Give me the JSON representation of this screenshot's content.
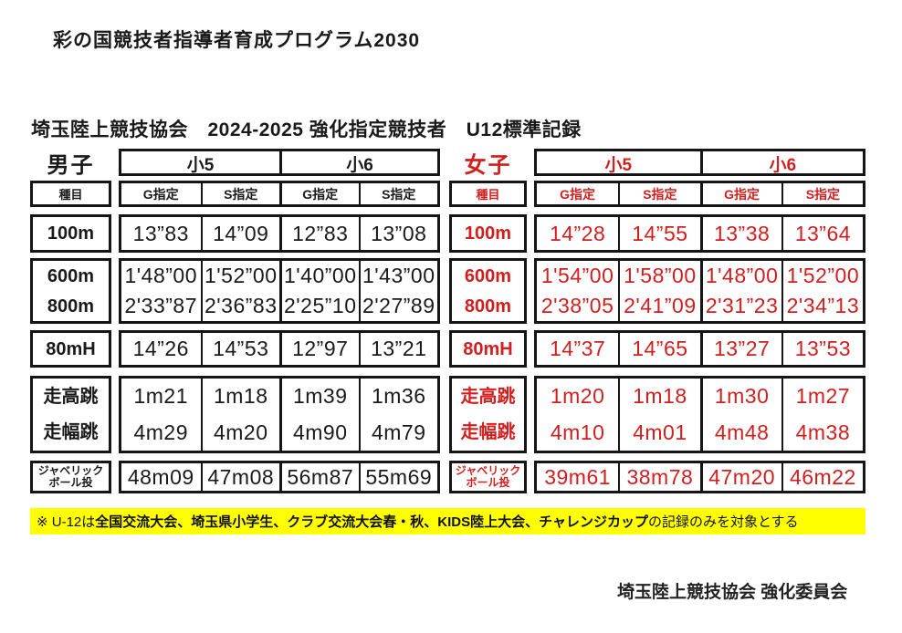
{
  "page": {
    "title": "彩の国競技者指導者育成プログラム2030",
    "subtitle": "埼玉陸上競技協会　2024-2025 強化指定競技者　U12標準記録",
    "footer": "埼玉陸上競技協会 強化委員会",
    "note": {
      "prefix": "※ U-12は",
      "bold": "全国交流大会、埼玉県小学生、クラブ交流大会春・秋、KIDS陸上大会、チャレンジカップ",
      "suffix": "の記録のみを対象とする",
      "bg_color": "#ffff00"
    },
    "colors": {
      "black_text": "#1a1a1a",
      "red_text": "#d21e1e",
      "border": "#151515",
      "note_bg": "#ffff00"
    }
  },
  "tables": [
    {
      "gender": "男子",
      "text_color": "#1a1a1a",
      "event_header": "種目",
      "grades": [
        "小5",
        "小6"
      ],
      "specs": [
        "G指定",
        "S指定",
        "G指定",
        "S指定"
      ],
      "groups": [
        {
          "rows": [
            {
              "event": "100m",
              "values": [
                "13”83",
                "14”09",
                "12”83",
                "13”08"
              ]
            }
          ]
        },
        {
          "rows": [
            {
              "event": "600m",
              "values": [
                "1'48”00",
                "1'52”00",
                "1'40”00",
                "1'43”00"
              ]
            },
            {
              "event": "800m",
              "values": [
                "2'33”87",
                "2'36”83",
                "2'25”10",
                "2'27”89"
              ]
            }
          ]
        },
        {
          "rows": [
            {
              "event": "80mH",
              "values": [
                "14”26",
                "14”53",
                "12”97",
                "13”21"
              ]
            }
          ]
        },
        {
          "rows": [
            {
              "event": "走高跳",
              "values": [
                "1m21",
                "1m18",
                "1m39",
                "1m36"
              ]
            },
            {
              "event": "走幅跳",
              "values": [
                "4m29",
                "4m20",
                "4m90",
                "4m79"
              ]
            }
          ]
        },
        {
          "rows": [
            {
              "event": "ジャベリック\nボール投",
              "values": [
                "48m09",
                "47m08",
                "56m87",
                "55m69"
              ]
            }
          ]
        }
      ]
    },
    {
      "gender": "女子",
      "text_color": "#d21e1e",
      "event_header": "種目",
      "grades": [
        "小5",
        "小6"
      ],
      "specs": [
        "G指定",
        "S指定",
        "G指定",
        "S指定"
      ],
      "groups": [
        {
          "rows": [
            {
              "event": "100m",
              "values": [
                "14”28",
                "14”55",
                "13”38",
                "13”64"
              ]
            }
          ]
        },
        {
          "rows": [
            {
              "event": "600m",
              "values": [
                "1'54”00",
                "1'58”00",
                "1'48”00",
                "1'52”00"
              ]
            },
            {
              "event": "800m",
              "values": [
                "2'38”05",
                "2'41”09",
                "2'31”23",
                "2'34”13"
              ]
            }
          ]
        },
        {
          "rows": [
            {
              "event": "80mH",
              "values": [
                "14”37",
                "14”65",
                "13”27",
                "13”53"
              ]
            }
          ]
        },
        {
          "rows": [
            {
              "event": "走高跳",
              "values": [
                "1m20",
                "1m18",
                "1m30",
                "1m27"
              ]
            },
            {
              "event": "走幅跳",
              "values": [
                "4m10",
                "4m01",
                "4m48",
                "4m38"
              ]
            }
          ]
        },
        {
          "rows": [
            {
              "event": "ジャベリック\nボール投",
              "values": [
                "39m61",
                "38m78",
                "47m20",
                "46m22"
              ]
            }
          ]
        }
      ]
    }
  ]
}
